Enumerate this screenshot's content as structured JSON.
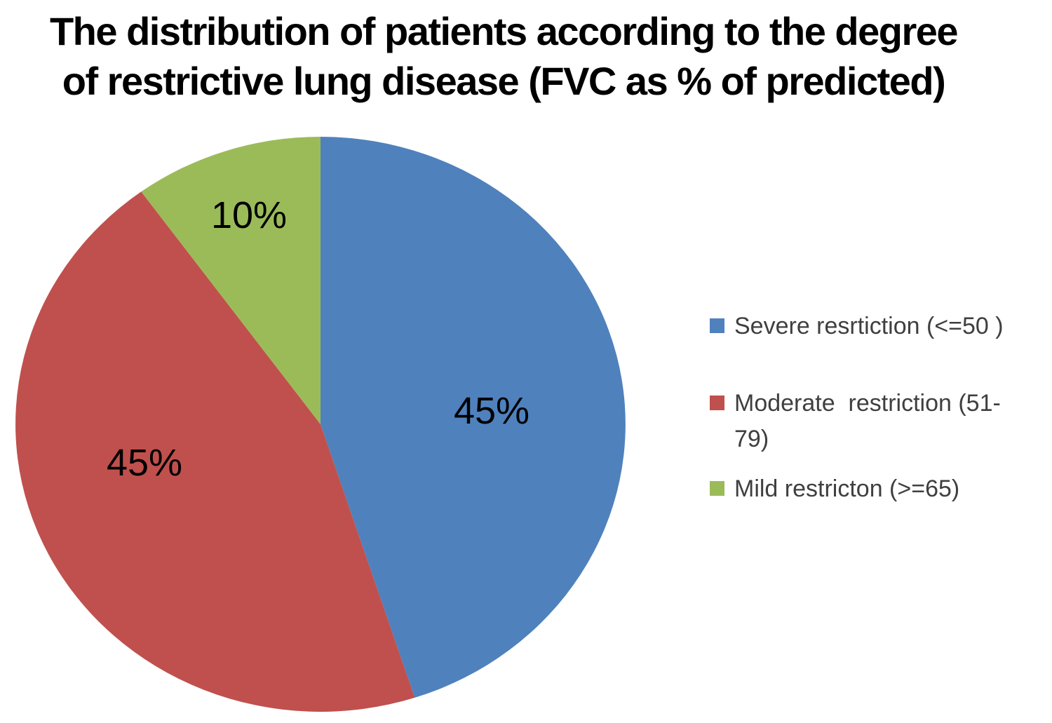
{
  "chart_data": {
    "type": "pie",
    "title": "The distribution of patients according to the degree of restrictive lung disease (FVC as % of predicted)",
    "title_lines": [
      "The distribution of patients according to the degree",
      "of restrictive lung disease (FVC as % of predicted)"
    ],
    "series": [
      {
        "name": "Severe resrtiction (<=50 )",
        "value": 45,
        "label": "45%",
        "color": "#4F81BD"
      },
      {
        "name": "Moderate  restriction (51-79)",
        "value": 45,
        "label": "45%",
        "color": "#C0504D"
      },
      {
        "name": "Mild restricton (>=65)",
        "value": 10,
        "label": "10%",
        "color": "#9BBB59"
      }
    ],
    "start_angle_deg": 0,
    "direction": "clockwise",
    "legend_position": "right",
    "background": "#FFFFFF"
  }
}
